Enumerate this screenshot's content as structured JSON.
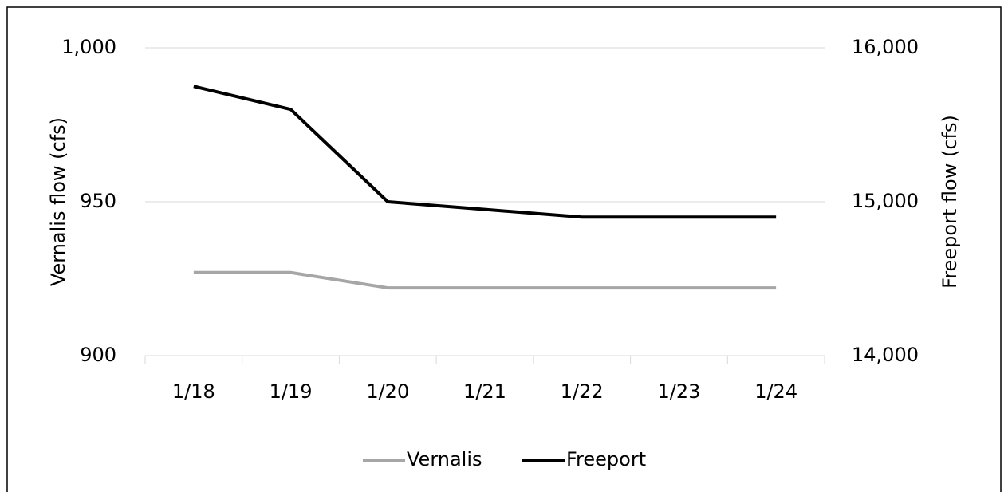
{
  "chart_data": {
    "type": "line",
    "categories": [
      "1/18",
      "1/19",
      "1/20",
      "1/21",
      "1/22",
      "1/23",
      "1/24"
    ],
    "series": [
      {
        "name": "Vernalis",
        "color": "#a6a6a6",
        "values": [
          927,
          927,
          922,
          922,
          922,
          922,
          922
        ]
      },
      {
        "name": "Freeport",
        "color": "#000000",
        "axis": "y2",
        "values": [
          15750,
          15600,
          15000,
          14950,
          14900,
          14900,
          14900
        ]
      }
    ],
    "ylabel": "Vernalis flow (cfs)",
    "y2label": "Freeport flow (cfs)",
    "ylim": [
      900,
      1000
    ],
    "yticks": [
      900,
      950,
      {
        "value": 1000,
        "label": "1,000"
      }
    ],
    "y2lim": [
      14000,
      16000
    ],
    "y2ticks": [
      {
        "value": 14000,
        "label": "14,000"
      },
      {
        "value": 15000,
        "label": "15,000"
      },
      {
        "value": 16000,
        "label": "16,000"
      }
    ],
    "grid": true,
    "legend": "bottom"
  }
}
